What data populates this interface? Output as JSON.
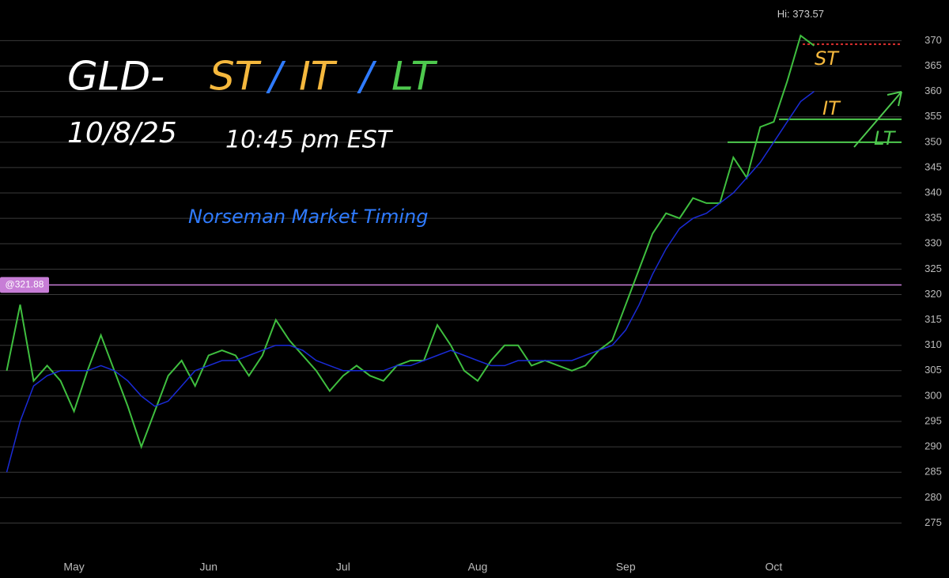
{
  "chart_data": {
    "type": "line",
    "categories": [
      null,
      null,
      null,
      null,
      null,
      "May",
      null,
      null,
      null,
      null,
      null,
      null,
      null,
      null,
      null,
      "Jun",
      null,
      null,
      null,
      null,
      null,
      null,
      null,
      null,
      null,
      "Jul",
      null,
      null,
      null,
      null,
      null,
      null,
      null,
      null,
      null,
      "Aug",
      null,
      null,
      null,
      null,
      null,
      null,
      null,
      null,
      null,
      null,
      "Sep",
      null,
      null,
      null,
      null,
      null,
      null,
      null,
      null,
      null,
      null,
      "Oct",
      null,
      null,
      null,
      null,
      null,
      null,
      null,
      null,
      null
    ],
    "series": [
      {
        "color": "#3fbf3f",
        "values": [
          305,
          318,
          303,
          306,
          303,
          297,
          305,
          312,
          305,
          298,
          290,
          297,
          304,
          307,
          302,
          308,
          309,
          308,
          304,
          308,
          315,
          311,
          308,
          305,
          301,
          304,
          306,
          304,
          303,
          306,
          307,
          307,
          314,
          310,
          305,
          303,
          307,
          310,
          310,
          306,
          307,
          306,
          305,
          306,
          309,
          311,
          318,
          325,
          332,
          336,
          335,
          339,
          338,
          338,
          347,
          343,
          353,
          354,
          362,
          371,
          369,
          null,
          null,
          null,
          null,
          null,
          null
        ]
      },
      {
        "color": "#1a2bd6",
        "values": [
          285,
          295,
          302,
          304,
          305,
          305,
          305,
          306,
          305,
          303,
          300,
          298,
          299,
          302,
          305,
          306,
          307,
          307,
          308,
          309,
          310,
          310,
          309,
          307,
          306,
          305,
          305,
          305,
          305,
          306,
          306,
          307,
          308,
          309,
          308,
          307,
          306,
          306,
          307,
          307,
          307,
          307,
          307,
          308,
          309,
          310,
          313,
          318,
          324,
          329,
          333,
          335,
          336,
          338,
          340,
          343,
          346,
          350,
          354,
          358,
          360,
          null,
          null,
          null,
          null,
          null,
          null
        ]
      }
    ],
    "ylim": [
      269,
      378
    ],
    "yticks": [
      275,
      280,
      285,
      290,
      295,
      300,
      305,
      310,
      315,
      320,
      325,
      330,
      335,
      340,
      345,
      350,
      355,
      360,
      365,
      370
    ],
    "grid": true,
    "hlines": [
      {
        "value": 321.88,
        "label": "@321.88",
        "color": "#c77dd6"
      },
      {
        "value": 369.3,
        "color": "#e03030",
        "dashed": true
      },
      {
        "value": 354.5,
        "color": "#4ec94e"
      },
      {
        "value": 350,
        "color": "#4ec94e"
      }
    ],
    "high": {
      "value": 373.57,
      "label": "Hi: 373.57"
    },
    "annotations": [
      {
        "text": "GLD-",
        "color": "#ffffff"
      },
      {
        "text": "ST",
        "color": "#f5b83d"
      },
      {
        "text": "/",
        "color": "#2f7bff"
      },
      {
        "text": "IT",
        "color": "#f5b83d"
      },
      {
        "text": "/",
        "color": "#2f7bff"
      },
      {
        "text": "LT",
        "color": "#4ec94e"
      },
      {
        "text": "10/8/25",
        "color": "#ffffff"
      },
      {
        "text": "10:45 pm EST",
        "color": "#ffffff"
      },
      {
        "text": "Norseman Market Timing",
        "color": "#2f7bff"
      },
      {
        "text": "ST",
        "color": "#f5b83d"
      },
      {
        "text": "IT",
        "color": "#f5b83d"
      },
      {
        "text": "LT",
        "color": "#4ec94e"
      }
    ]
  }
}
